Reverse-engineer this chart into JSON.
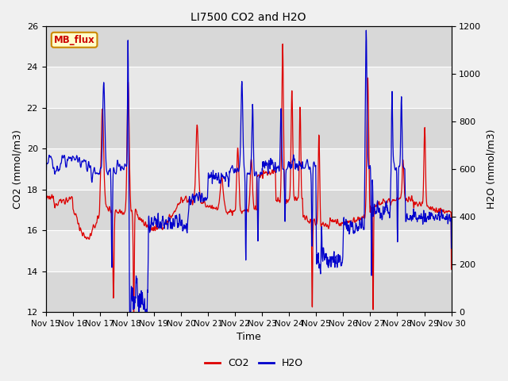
{
  "title": "LI7500 CO2 and H2O",
  "xlabel": "Time",
  "ylabel_left": "CO2 (mmol/m3)",
  "ylabel_right": "H2O (mmol/m3)",
  "co2_ylim": [
    12,
    26
  ],
  "h2o_ylim": [
    0,
    1200
  ],
  "co2_yticks": [
    12,
    14,
    16,
    18,
    20,
    22,
    24,
    26
  ],
  "h2o_yticks": [
    0,
    200,
    400,
    600,
    800,
    1000,
    1200
  ],
  "xtick_labels": [
    "Nov 15",
    "Nov 16",
    "Nov 17",
    "Nov 18",
    "Nov 19",
    "Nov 20",
    "Nov 21",
    "Nov 22",
    "Nov 23",
    "Nov 24",
    "Nov 25",
    "Nov 26",
    "Nov 27",
    "Nov 28",
    "Nov 29",
    "Nov 30"
  ],
  "co2_color": "#dd0000",
  "h2o_color": "#0000cc",
  "fig_bg_color": "#f0f0f0",
  "plot_bg_color": "#e8e8e8",
  "grid_color": "#ffffff",
  "alt_band_color": "#d8d8d8",
  "legend_items": [
    "CO2",
    "H2O"
  ],
  "text_box_label": "MB_flux",
  "text_box_bg": "#ffffcc",
  "text_box_edge": "#cc8800",
  "text_box_text": "#cc0000",
  "title_fontsize": 10,
  "axis_label_fontsize": 9,
  "tick_fontsize": 8,
  "legend_fontsize": 9,
  "linewidth": 0.9
}
